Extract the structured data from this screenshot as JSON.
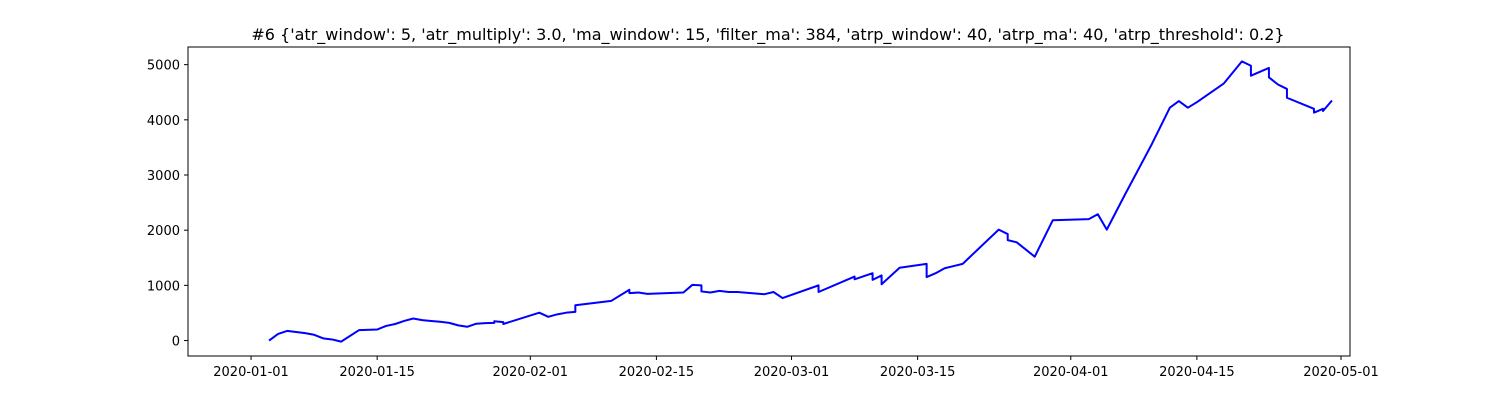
{
  "chart_data": {
    "type": "line",
    "title": "#6 {'atr_window': 5, 'atr_multiply': 3.0, 'ma_window': 15, 'filter_ma': 384, 'atrp_window': 40, 'atrp_ma': 40, 'atrp_threshold': 0.2}",
    "xlabel": "",
    "ylabel": "",
    "x_ticks": [
      "2020-01-01",
      "2020-01-15",
      "2020-02-01",
      "2020-02-15",
      "2020-03-01",
      "2020-03-15",
      "2020-04-01",
      "2020-04-15",
      "2020-05-01"
    ],
    "y_ticks": [
      0,
      1000,
      2000,
      3000,
      4000,
      5000
    ],
    "xlim": [
      "2019-12-25",
      "2020-05-02"
    ],
    "ylim": [
      -280,
      5320
    ],
    "grid": false,
    "series": [
      {
        "color": "#0000ff",
        "points": [
          [
            "2020-01-03",
            0
          ],
          [
            "2020-01-04",
            120
          ],
          [
            "2020-01-05",
            175
          ],
          [
            "2020-01-06",
            155
          ],
          [
            "2020-01-07",
            135
          ],
          [
            "2020-01-08",
            105
          ],
          [
            "2020-01-09",
            40
          ],
          [
            "2020-01-10",
            20
          ],
          [
            "2020-01-11",
            -20
          ],
          [
            "2020-01-13",
            190
          ],
          [
            "2020-01-15",
            200
          ],
          [
            "2020-01-16",
            265
          ],
          [
            "2020-01-17",
            300
          ],
          [
            "2020-01-18",
            355
          ],
          [
            "2020-01-19",
            400
          ],
          [
            "2020-01-20",
            370
          ],
          [
            "2020-01-21",
            355
          ],
          [
            "2020-01-22",
            340
          ],
          [
            "2020-01-23",
            320
          ],
          [
            "2020-01-24",
            275
          ],
          [
            "2020-01-25",
            250
          ],
          [
            "2020-01-26",
            305
          ],
          [
            "2020-01-27",
            315
          ],
          [
            "2020-01-28",
            320
          ],
          [
            "2020-01-28",
            350
          ],
          [
            "2020-01-29",
            335
          ],
          [
            "2020-01-29",
            300
          ],
          [
            "2020-02-02",
            505
          ],
          [
            "2020-02-03",
            430
          ],
          [
            "2020-02-04",
            475
          ],
          [
            "2020-02-05",
            505
          ],
          [
            "2020-02-06",
            520
          ],
          [
            "2020-02-06",
            640
          ],
          [
            "2020-02-10",
            720
          ],
          [
            "2020-02-12",
            920
          ],
          [
            "2020-02-12",
            860
          ],
          [
            "2020-02-13",
            870
          ],
          [
            "2020-02-14",
            845
          ],
          [
            "2020-02-18",
            870
          ],
          [
            "2020-02-19",
            1010
          ],
          [
            "2020-02-20",
            1000
          ],
          [
            "2020-02-20",
            890
          ],
          [
            "2020-02-21",
            870
          ],
          [
            "2020-02-22",
            900
          ],
          [
            "2020-02-23",
            880
          ],
          [
            "2020-02-24",
            880
          ],
          [
            "2020-02-27",
            840
          ],
          [
            "2020-02-28",
            880
          ],
          [
            "2020-02-29",
            770
          ],
          [
            "2020-03-04",
            1000
          ],
          [
            "2020-03-04",
            880
          ],
          [
            "2020-03-08",
            1160
          ],
          [
            "2020-03-08",
            1110
          ],
          [
            "2020-03-10",
            1220
          ],
          [
            "2020-03-10",
            1100
          ],
          [
            "2020-03-11",
            1180
          ],
          [
            "2020-03-11",
            1020
          ],
          [
            "2020-03-12",
            1170
          ],
          [
            "2020-03-13",
            1320
          ],
          [
            "2020-03-16",
            1390
          ],
          [
            "2020-03-16",
            1150
          ],
          [
            "2020-03-17",
            1220
          ],
          [
            "2020-03-18",
            1310
          ],
          [
            "2020-03-19",
            1350
          ],
          [
            "2020-03-20",
            1390
          ],
          [
            "2020-03-24",
            2010
          ],
          [
            "2020-03-25",
            1930
          ],
          [
            "2020-03-25",
            1820
          ],
          [
            "2020-03-26",
            1780
          ],
          [
            "2020-03-28",
            1520
          ],
          [
            "2020-03-30",
            2180
          ],
          [
            "2020-04-03",
            2200
          ],
          [
            "2020-04-04",
            2290
          ],
          [
            "2020-04-05",
            2010
          ],
          [
            "2020-04-07",
            2640
          ],
          [
            "2020-04-10",
            3560
          ],
          [
            "2020-04-12",
            4220
          ],
          [
            "2020-04-13",
            4340
          ],
          [
            "2020-04-14",
            4220
          ],
          [
            "2020-04-15",
            4320
          ],
          [
            "2020-04-18",
            4660
          ],
          [
            "2020-04-20",
            5060
          ],
          [
            "2020-04-21",
            4980
          ],
          [
            "2020-04-21",
            4800
          ],
          [
            "2020-04-23",
            4940
          ],
          [
            "2020-04-23",
            4770
          ],
          [
            "2020-04-24",
            4640
          ],
          [
            "2020-04-25",
            4560
          ],
          [
            "2020-04-25",
            4400
          ],
          [
            "2020-04-28",
            4200
          ],
          [
            "2020-04-28",
            4130
          ],
          [
            "2020-04-29",
            4200
          ],
          [
            "2020-04-29",
            4160
          ],
          [
            "2020-04-30",
            4350
          ]
        ]
      }
    ]
  }
}
